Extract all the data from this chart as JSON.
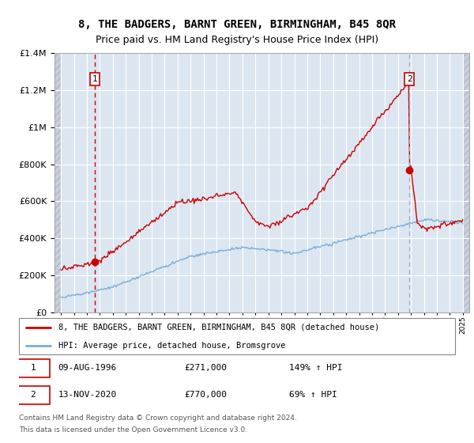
{
  "title": "8, THE BADGERS, BARNT GREEN, BIRMINGHAM, B45 8QR",
  "subtitle": "Price paid vs. HM Land Registry's House Price Index (HPI)",
  "title_fontsize": 10,
  "subtitle_fontsize": 9,
  "ylim": [
    0,
    1400000
  ],
  "xlim_start": 1993.5,
  "xlim_end": 2025.5,
  "sale1_year": 1996.61,
  "sale1_price": 271000,
  "sale1_label": "1",
  "sale2_year": 2020.87,
  "sale2_price": 770000,
  "sale2_label": "2",
  "legend_line1": "8, THE BADGERS, BARNT GREEN, BIRMINGHAM, B45 8QR (detached house)",
  "legend_line2": "HPI: Average price, detached house, Bromsgrove",
  "footnote_line1": "Contains HM Land Registry data © Crown copyright and database right 2024.",
  "footnote_line2": "This data is licensed under the Open Government Licence v3.0.",
  "table_row1": [
    "1",
    "09-AUG-1996",
    "£271,000",
    "149% ↑ HPI"
  ],
  "table_row2": [
    "2",
    "13-NOV-2020",
    "£770,000",
    "69% ↑ HPI"
  ],
  "property_color": "#cc0000",
  "hpi_color": "#7aaed6",
  "background_color": "#dce6f1",
  "grid_color": "#ffffff",
  "vline1_color": "#cc0000",
  "vline2_color": "#aaaacc"
}
